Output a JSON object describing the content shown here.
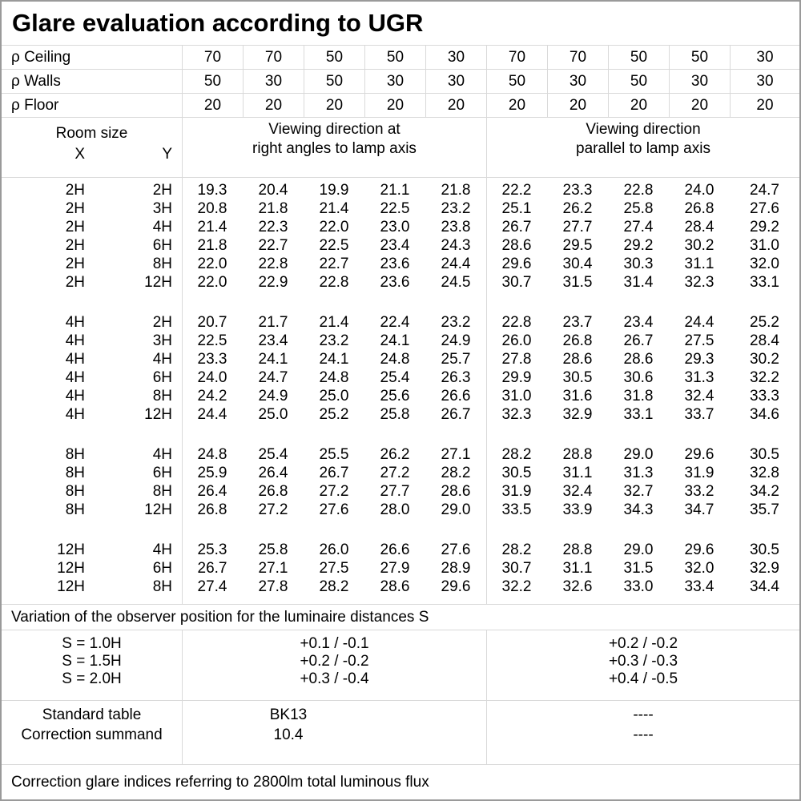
{
  "title": "Glare evaluation according to UGR",
  "colors": {
    "grid_line": "#d9d9d9",
    "outer_border": "#9a9a9a",
    "text": "#000000",
    "background": "#ffffff"
  },
  "reflectances": [
    {
      "label": "ρ Ceiling",
      "values": [
        "70",
        "70",
        "50",
        "50",
        "30",
        "70",
        "70",
        "50",
        "50",
        "30"
      ]
    },
    {
      "label": "ρ Walls",
      "values": [
        "50",
        "30",
        "50",
        "30",
        "30",
        "50",
        "30",
        "50",
        "30",
        "30"
      ]
    },
    {
      "label": "ρ Floor",
      "values": [
        "20",
        "20",
        "20",
        "20",
        "20",
        "20",
        "20",
        "20",
        "20",
        "20"
      ]
    }
  ],
  "header": {
    "room_size_label": "Room size",
    "x_label": "X",
    "y_label": "Y",
    "viewing_left_line1": "Viewing direction at",
    "viewing_left_line2": "right angles to lamp axis",
    "viewing_right_line1": "Viewing direction",
    "viewing_right_line2": "parallel to lamp axis"
  },
  "ugr_groups": [
    [
      [
        "2H",
        "2H",
        "19.3",
        "20.4",
        "19.9",
        "21.1",
        "21.8",
        "22.2",
        "23.3",
        "22.8",
        "24.0",
        "24.7"
      ],
      [
        "2H",
        "3H",
        "20.8",
        "21.8",
        "21.4",
        "22.5",
        "23.2",
        "25.1",
        "26.2",
        "25.8",
        "26.8",
        "27.6"
      ],
      [
        "2H",
        "4H",
        "21.4",
        "22.3",
        "22.0",
        "23.0",
        "23.8",
        "26.7",
        "27.7",
        "27.4",
        "28.4",
        "29.2"
      ],
      [
        "2H",
        "6H",
        "21.8",
        "22.7",
        "22.5",
        "23.4",
        "24.3",
        "28.6",
        "29.5",
        "29.2",
        "30.2",
        "31.0"
      ],
      [
        "2H",
        "8H",
        "22.0",
        "22.8",
        "22.7",
        "23.6",
        "24.4",
        "29.6",
        "30.4",
        "30.3",
        "31.1",
        "32.0"
      ],
      [
        "2H",
        "12H",
        "22.0",
        "22.9",
        "22.8",
        "23.6",
        "24.5",
        "30.7",
        "31.5",
        "31.4",
        "32.3",
        "33.1"
      ]
    ],
    [
      [
        "4H",
        "2H",
        "20.7",
        "21.7",
        "21.4",
        "22.4",
        "23.2",
        "22.8",
        "23.7",
        "23.4",
        "24.4",
        "25.2"
      ],
      [
        "4H",
        "3H",
        "22.5",
        "23.4",
        "23.2",
        "24.1",
        "24.9",
        "26.0",
        "26.8",
        "26.7",
        "27.5",
        "28.4"
      ],
      [
        "4H",
        "4H",
        "23.3",
        "24.1",
        "24.1",
        "24.8",
        "25.7",
        "27.8",
        "28.6",
        "28.6",
        "29.3",
        "30.2"
      ],
      [
        "4H",
        "6H",
        "24.0",
        "24.7",
        "24.8",
        "25.4",
        "26.3",
        "29.9",
        "30.5",
        "30.6",
        "31.3",
        "32.2"
      ],
      [
        "4H",
        "8H",
        "24.2",
        "24.9",
        "25.0",
        "25.6",
        "26.6",
        "31.0",
        "31.6",
        "31.8",
        "32.4",
        "33.3"
      ],
      [
        "4H",
        "12H",
        "24.4",
        "25.0",
        "25.2",
        "25.8",
        "26.7",
        "32.3",
        "32.9",
        "33.1",
        "33.7",
        "34.6"
      ]
    ],
    [
      [
        "8H",
        "4H",
        "24.8",
        "25.4",
        "25.5",
        "26.2",
        "27.1",
        "28.2",
        "28.8",
        "29.0",
        "29.6",
        "30.5"
      ],
      [
        "8H",
        "6H",
        "25.9",
        "26.4",
        "26.7",
        "27.2",
        "28.2",
        "30.5",
        "31.1",
        "31.3",
        "31.9",
        "32.8"
      ],
      [
        "8H",
        "8H",
        "26.4",
        "26.8",
        "27.2",
        "27.7",
        "28.6",
        "31.9",
        "32.4",
        "32.7",
        "33.2",
        "34.2"
      ],
      [
        "8H",
        "12H",
        "26.8",
        "27.2",
        "27.6",
        "28.0",
        "29.0",
        "33.5",
        "33.9",
        "34.3",
        "34.7",
        "35.7"
      ]
    ],
    [
      [
        "12H",
        "4H",
        "25.3",
        "25.8",
        "26.0",
        "26.6",
        "27.6",
        "28.2",
        "28.8",
        "29.0",
        "29.6",
        "30.5"
      ],
      [
        "12H",
        "6H",
        "26.7",
        "27.1",
        "27.5",
        "27.9",
        "28.9",
        "30.7",
        "31.1",
        "31.5",
        "32.0",
        "32.9"
      ],
      [
        "12H",
        "8H",
        "27.4",
        "27.8",
        "28.2",
        "28.6",
        "29.6",
        "32.2",
        "32.6",
        "33.0",
        "33.4",
        "34.4"
      ]
    ]
  ],
  "variation_note": "Variation of the observer position for the luminaire distances S",
  "variation": {
    "labels": [
      "S = 1.0H",
      "S = 1.5H",
      "S = 2.0H"
    ],
    "left_values": [
      "+0.1 / -0.1",
      "+0.2 / -0.2",
      "+0.3 / -0.4"
    ],
    "right_values": [
      "+0.2 / -0.2",
      "+0.3 / -0.3",
      "+0.4 / -0.5"
    ]
  },
  "summary": {
    "rows": [
      {
        "label": "Standard table",
        "left": "BK13",
        "right": "----"
      },
      {
        "label": "Correction summand",
        "left": "10.4",
        "right": "----"
      }
    ]
  },
  "footer_note": "Correction glare indices referring to 2800lm total luminous flux"
}
